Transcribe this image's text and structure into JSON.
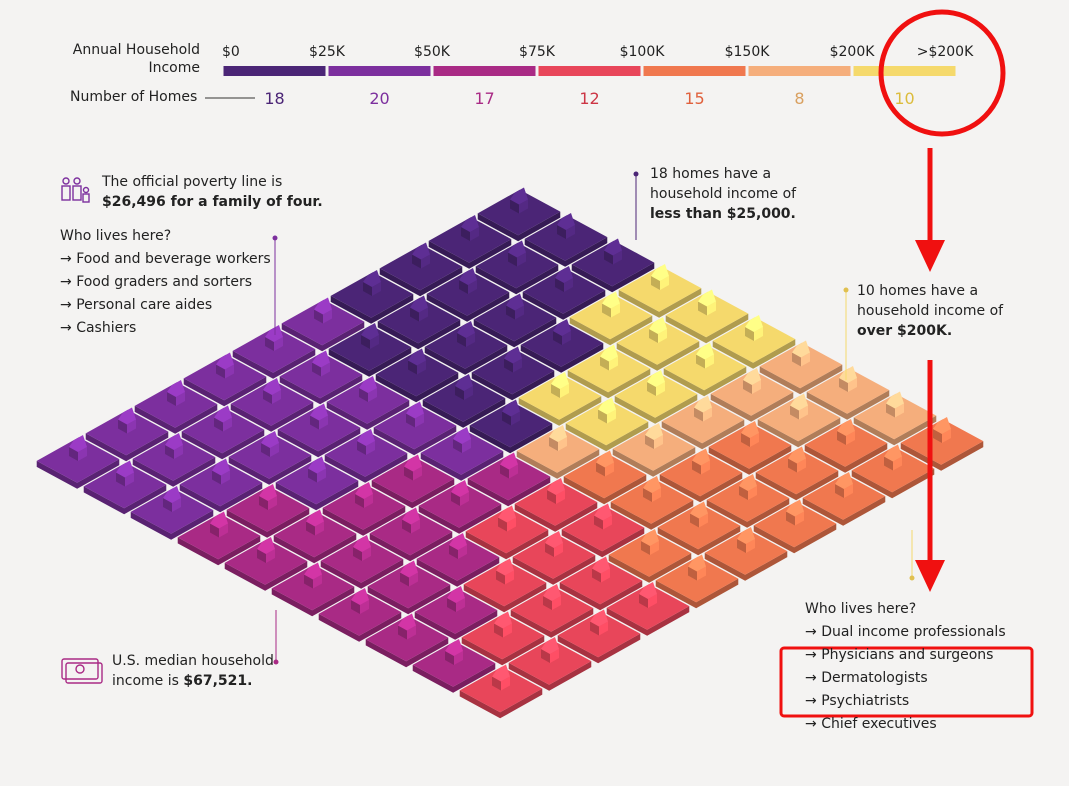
{
  "chart_data": {
    "type": "waffle",
    "income_label": "Annual Household Income",
    "count_label": "Number of Homes",
    "ticks": [
      "$0",
      "$25K",
      "$50K",
      "$75K",
      "$100K",
      "$150K",
      "$200K",
      ">$200K"
    ],
    "values": [
      18,
      20,
      17,
      12,
      15,
      8,
      10
    ],
    "colors": [
      "#4b2576",
      "#7c2f9e",
      "#a92a85",
      "#e8465a",
      "#f0784f",
      "#f5ae7c",
      "#f5d96c"
    ],
    "label_colors": [
      "#4b2576",
      "#7c2f9e",
      "#a92a85",
      "#cc3545",
      "#e0603c",
      "#d9a060",
      "#dcbc3c"
    ],
    "annotations": {
      "poverty": {
        "text": "The official poverty line is",
        "bold": "$26,496 for a family of four."
      },
      "low_income": {
        "heading": "Who lives here?",
        "items": [
          "Food and beverage workers",
          "Food graders and sorters",
          "Personal care aides",
          "Cashiers"
        ]
      },
      "lowest": {
        "text": "18 homes have a household income of",
        "bold": "less than $25,000."
      },
      "highest": {
        "text": "10 homes have a household income of",
        "bold": "over $200K."
      },
      "median": {
        "text": "U.S. median household income is",
        "bold": "$67,521."
      },
      "high_income": {
        "heading": "Who lives here?",
        "items": [
          "Dual income professionals",
          "Physicians and surgeons",
          "Dermatologists",
          "Psychiatrists",
          "Chief executives"
        ]
      }
    }
  }
}
